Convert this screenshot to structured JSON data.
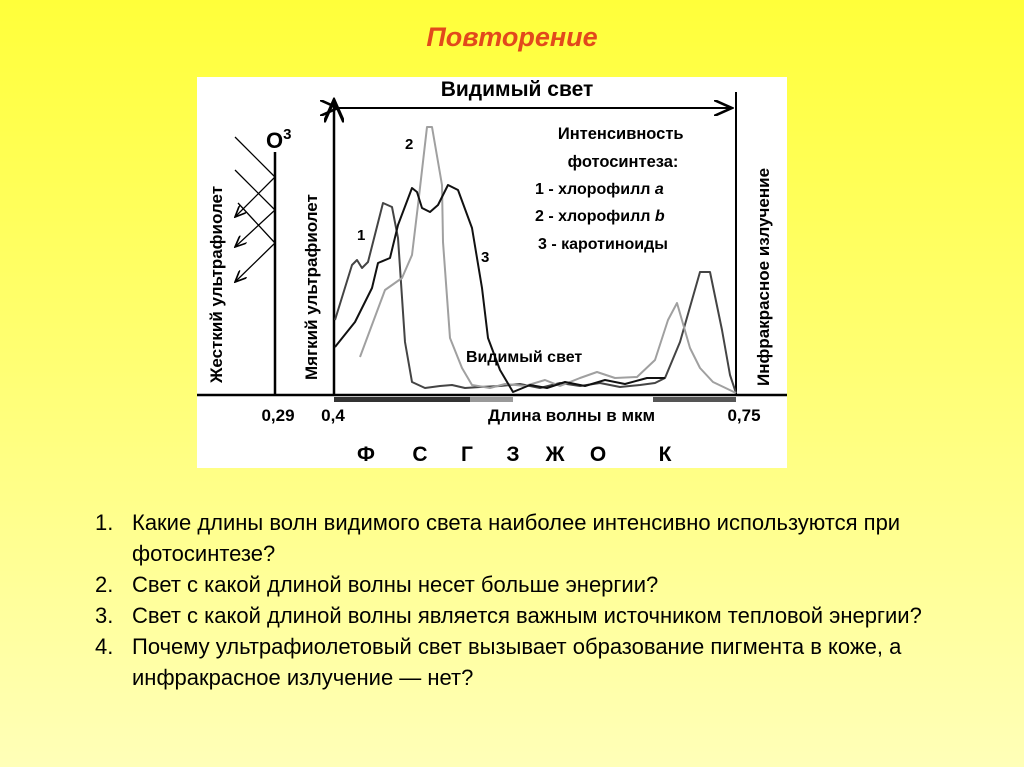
{
  "slide": {
    "title": "Повторение",
    "title_color": "#e2491c"
  },
  "figure": {
    "visible_light_top": "Видимый свет",
    "ozone_label": "O",
    "ozone_sup": "3",
    "hard_uv": "Жесткий ультрафиолет",
    "soft_uv": "Мягкий ультрафиолет",
    "infrared": "Инфракрасное излучение",
    "legend_title_1": "Интенсивность",
    "legend_title_2": "фотосинтеза:",
    "legend": [
      "1 - хлорофилл ",
      "2 - хлорофилл ",
      "3 - каротиноиды"
    ],
    "legend_italic": [
      "a",
      "b"
    ],
    "curve_labels": [
      "1",
      "2",
      "3"
    ],
    "visible_light_inner": "Видимый свет",
    "axis_label": "Длина волны в мкм",
    "ticks": [
      "0,29",
      "0,4",
      "0,75"
    ],
    "colors": [
      "Ф",
      "С",
      "Г",
      "З",
      "Ж",
      "О",
      "К"
    ],
    "curve_colors": {
      "chlorophyll_a": "#444444",
      "chlorophyll_b": "#a0a0a0",
      "carotenoids": "#111111"
    }
  },
  "questions": [
    {
      "num": "1.",
      "text": "Какие длины волн видимого света наиболее интенсивно используются при фотосинтезе?"
    },
    {
      "num": "2.",
      "text": "Свет с какой длиной волны несет больше энергии?"
    },
    {
      "num": "3.",
      "text": "Свет с какой длиной волны является важным источником тепловой энергии?"
    },
    {
      "num": "4.",
      "text": "Почему ультрафиолетовый свет вызывает образование пигмента в коже, а инфракрасное излучение — нет?"
    }
  ]
}
